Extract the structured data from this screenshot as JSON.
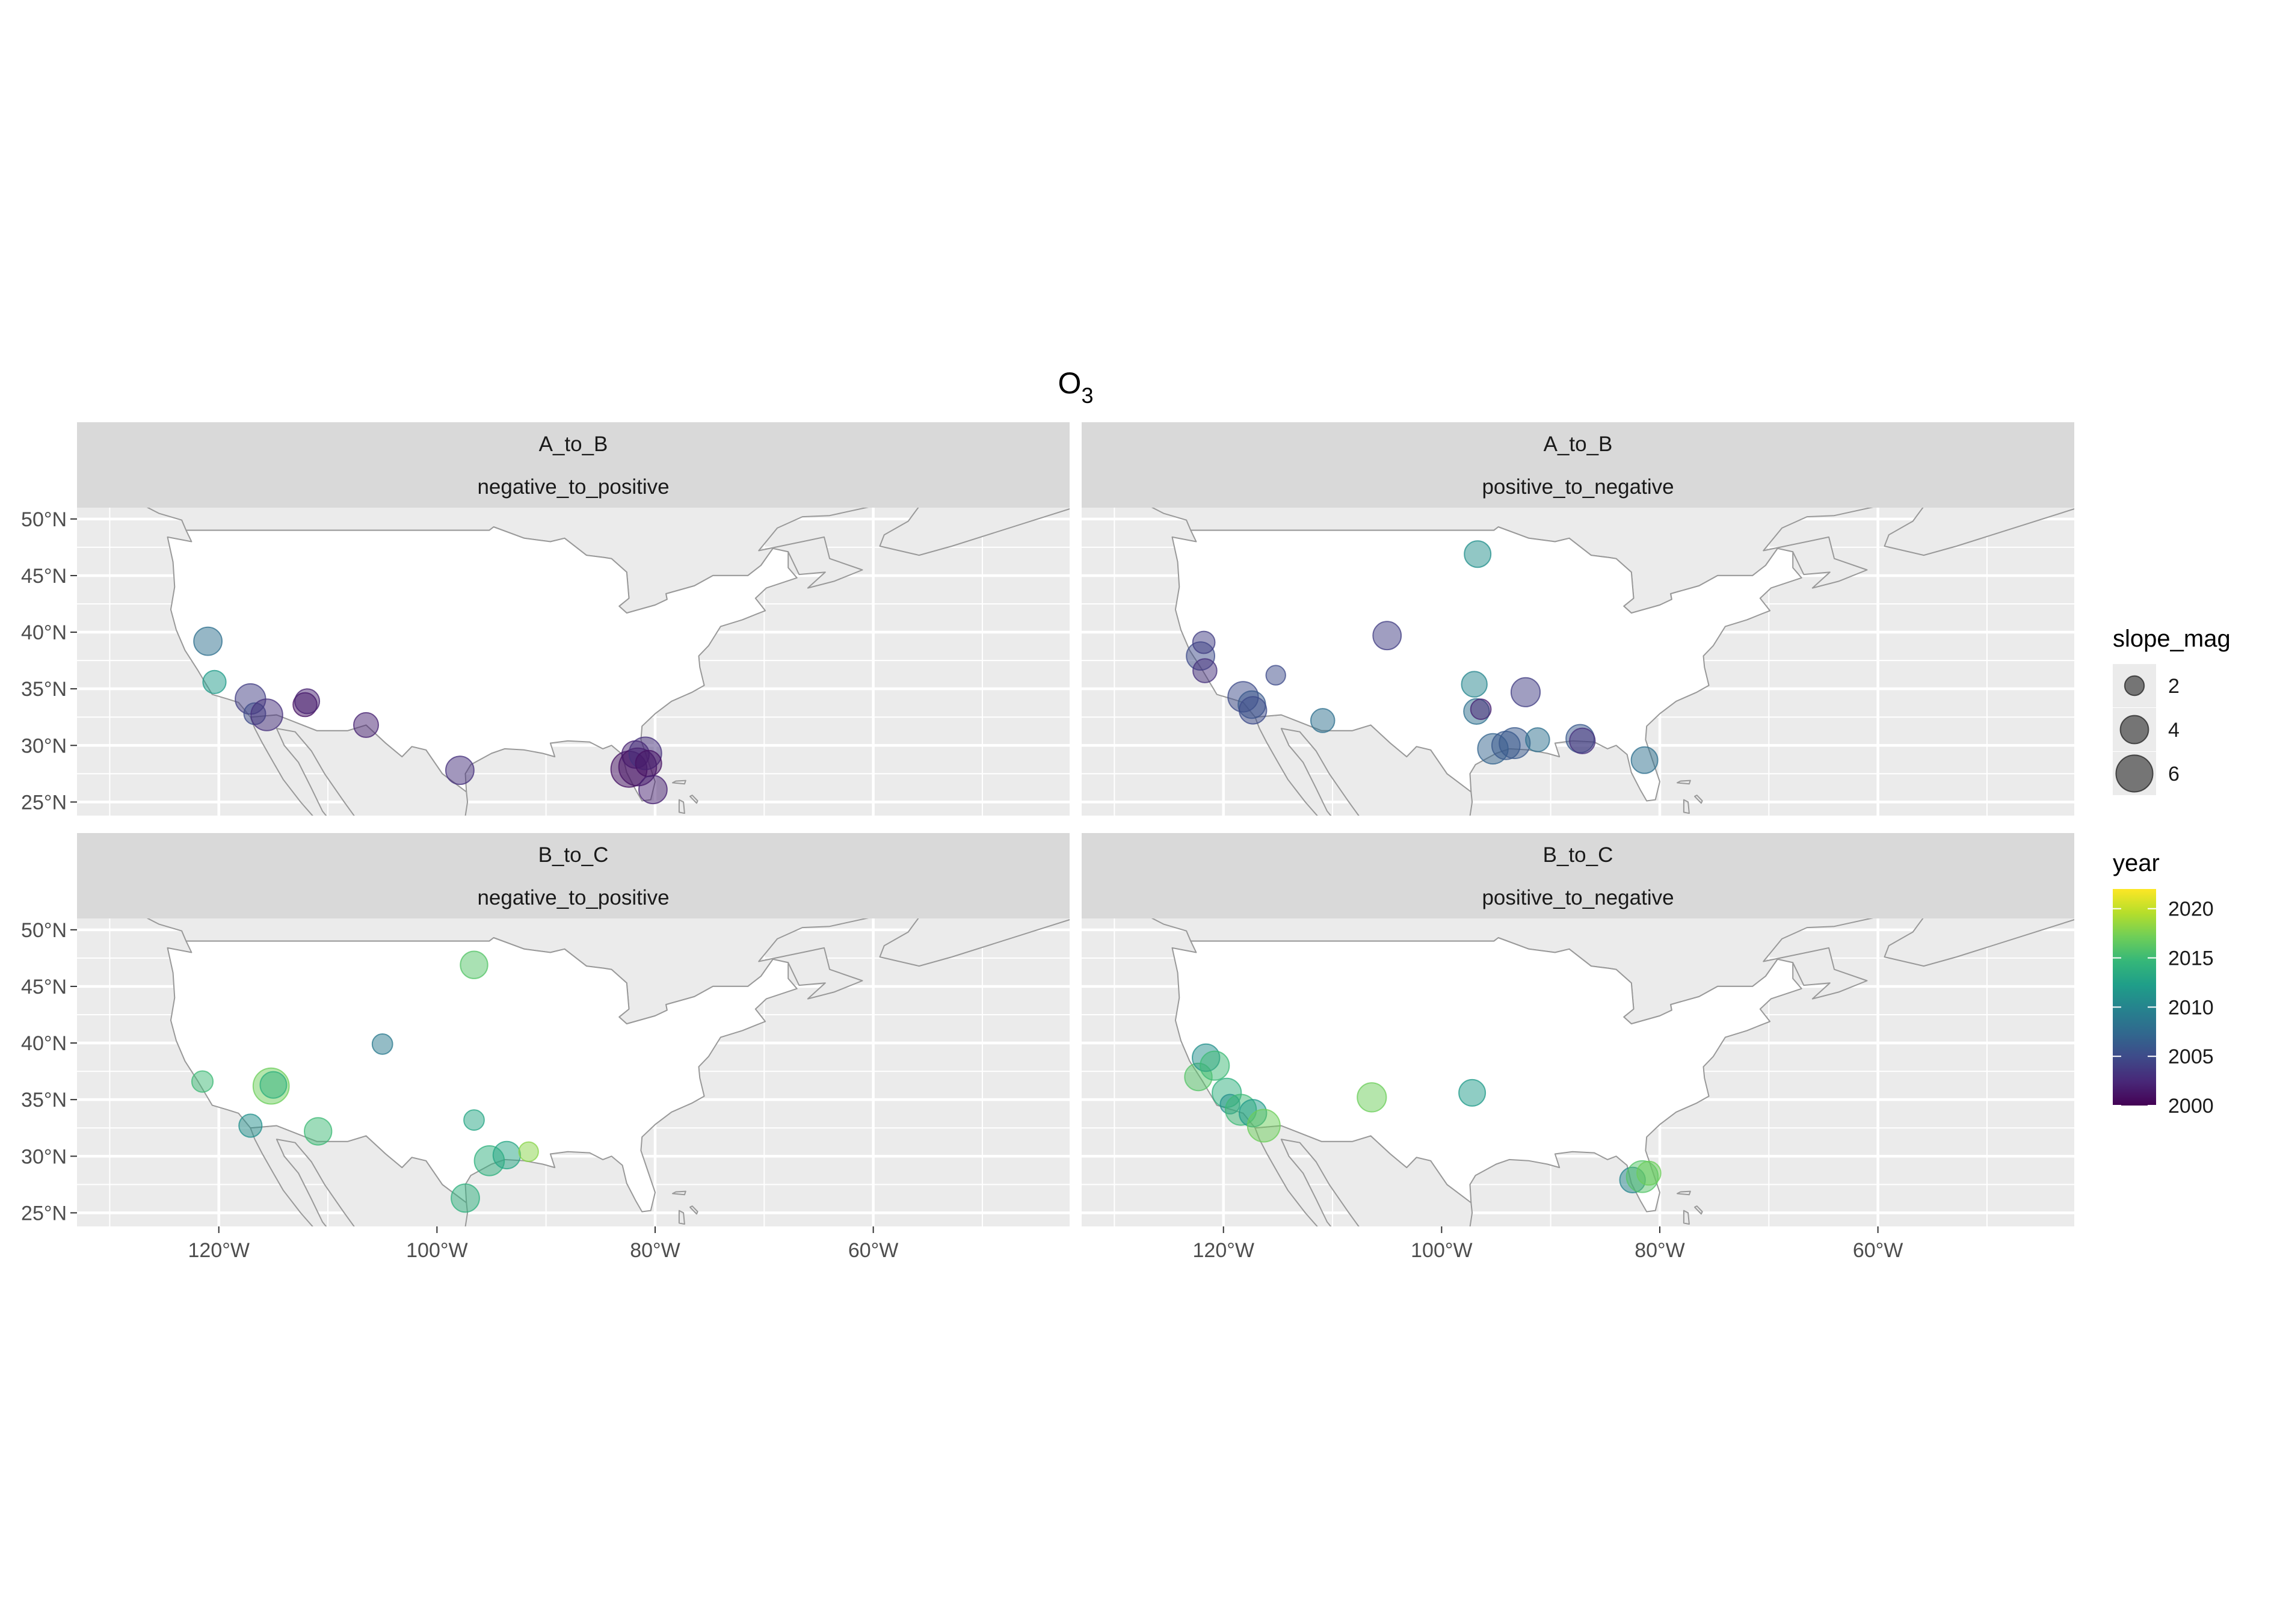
{
  "title": {
    "base": "O",
    "subscript": "3"
  },
  "x_ticks": [
    "120°W",
    "100°W",
    "80°W",
    "60°W"
  ],
  "y_ticks": [
    "50°N",
    "45°N",
    "40°N",
    "35°N",
    "30°N",
    "25°N"
  ],
  "panels": [
    {
      "strip_top": "A_to_B",
      "strip_bottom": "negative_to_positive",
      "points": [
        {
          "lon": -121.0,
          "lat": 39.2,
          "size": 4.0,
          "year": 2008
        },
        {
          "lon": -120.4,
          "lat": 35.6,
          "size": 2.8,
          "year": 2012
        },
        {
          "lon": -117.1,
          "lat": 34.1,
          "size": 4.5,
          "year": 2004
        },
        {
          "lon": -116.7,
          "lat": 32.8,
          "size": 2.5,
          "year": 2005
        },
        {
          "lon": -115.6,
          "lat": 32.7,
          "size": 4.8,
          "year": 2003
        },
        {
          "lon": -112.1,
          "lat": 33.6,
          "size": 3.0,
          "year": 2001
        },
        {
          "lon": -111.9,
          "lat": 33.9,
          "size": 3.2,
          "year": 2002
        },
        {
          "lon": -106.5,
          "lat": 31.8,
          "size": 3.2,
          "year": 2002
        },
        {
          "lon": -97.9,
          "lat": 27.8,
          "size": 4.0,
          "year": 2003
        },
        {
          "lon": -82.4,
          "lat": 27.9,
          "size": 5.8,
          "year": 2001
        },
        {
          "lon": -81.8,
          "lat": 29.2,
          "size": 3.8,
          "year": 2002
        },
        {
          "lon": -81.6,
          "lat": 28.1,
          "size": 6.2,
          "year": 2001
        },
        {
          "lon": -80.9,
          "lat": 29.3,
          "size": 5.0,
          "year": 2003
        },
        {
          "lon": -80.6,
          "lat": 28.4,
          "size": 3.5,
          "year": 2001
        },
        {
          "lon": -80.2,
          "lat": 26.1,
          "size": 4.0,
          "year": 2002
        }
      ]
    },
    {
      "strip_top": "A_to_B",
      "strip_bottom": "positive_to_negative",
      "points": [
        {
          "lon": -122.1,
          "lat": 37.9,
          "size": 4.0,
          "year": 2005
        },
        {
          "lon": -121.8,
          "lat": 39.1,
          "size": 2.6,
          "year": 2004
        },
        {
          "lon": -121.7,
          "lat": 36.6,
          "size": 3.0,
          "year": 2003
        },
        {
          "lon": -118.2,
          "lat": 34.3,
          "size": 4.5,
          "year": 2005
        },
        {
          "lon": -117.4,
          "lat": 33.6,
          "size": 3.8,
          "year": 2006
        },
        {
          "lon": -117.3,
          "lat": 33.1,
          "size": 3.8,
          "year": 2005
        },
        {
          "lon": -115.2,
          "lat": 36.2,
          "size": 2.0,
          "year": 2005
        },
        {
          "lon": -110.9,
          "lat": 32.2,
          "size": 3.0,
          "year": 2008
        },
        {
          "lon": -105.0,
          "lat": 39.7,
          "size": 4.0,
          "year": 2004
        },
        {
          "lon": -96.7,
          "lat": 46.9,
          "size": 3.6,
          "year": 2011
        },
        {
          "lon": -97.0,
          "lat": 35.4,
          "size": 3.4,
          "year": 2010
        },
        {
          "lon": -96.8,
          "lat": 33.0,
          "size": 3.4,
          "year": 2008
        },
        {
          "lon": -96.4,
          "lat": 33.2,
          "size": 2.2,
          "year": 2002
        },
        {
          "lon": -92.3,
          "lat": 34.7,
          "size": 4.2,
          "year": 2004
        },
        {
          "lon": -95.3,
          "lat": 29.7,
          "size": 4.5,
          "year": 2007
        },
        {
          "lon": -94.1,
          "lat": 30.0,
          "size": 4.0,
          "year": 2006
        },
        {
          "lon": -93.3,
          "lat": 30.2,
          "size": 4.6,
          "year": 2006
        },
        {
          "lon": -91.2,
          "lat": 30.5,
          "size": 3.0,
          "year": 2008
        },
        {
          "lon": -87.3,
          "lat": 30.6,
          "size": 4.0,
          "year": 2006
        },
        {
          "lon": -87.1,
          "lat": 30.4,
          "size": 3.4,
          "year": 2003
        },
        {
          "lon": -81.4,
          "lat": 28.7,
          "size": 3.6,
          "year": 2008
        }
      ]
    },
    {
      "strip_top": "B_to_C",
      "strip_bottom": "negative_to_positive",
      "points": [
        {
          "lon": -96.6,
          "lat": 46.9,
          "size": 3.8,
          "year": 2016
        },
        {
          "lon": -105.0,
          "lat": 39.9,
          "size": 2.2,
          "year": 2009
        },
        {
          "lon": -121.5,
          "lat": 36.6,
          "size": 2.4,
          "year": 2015
        },
        {
          "lon": -115.2,
          "lat": 36.2,
          "size": 5.8,
          "year": 2017
        },
        {
          "lon": -115.0,
          "lat": 36.3,
          "size": 3.6,
          "year": 2014
        },
        {
          "lon": -117.1,
          "lat": 32.7,
          "size": 2.8,
          "year": 2011
        },
        {
          "lon": -110.9,
          "lat": 32.2,
          "size": 3.8,
          "year": 2015
        },
        {
          "lon": -96.6,
          "lat": 33.2,
          "size": 2.2,
          "year": 2013
        },
        {
          "lon": -95.2,
          "lat": 29.6,
          "size": 4.4,
          "year": 2014
        },
        {
          "lon": -93.6,
          "lat": 30.1,
          "size": 3.8,
          "year": 2013
        },
        {
          "lon": -91.6,
          "lat": 30.4,
          "size": 2.0,
          "year": 2018
        },
        {
          "lon": -97.4,
          "lat": 26.3,
          "size": 4.0,
          "year": 2014
        }
      ]
    },
    {
      "strip_top": "B_to_C",
      "strip_bottom": "positive_to_negative",
      "points": [
        {
          "lon": -122.3,
          "lat": 37.0,
          "size": 3.8,
          "year": 2016
        },
        {
          "lon": -121.6,
          "lat": 38.7,
          "size": 3.8,
          "year": 2011
        },
        {
          "lon": -120.8,
          "lat": 38.0,
          "size": 4.2,
          "year": 2015
        },
        {
          "lon": -119.7,
          "lat": 35.6,
          "size": 4.2,
          "year": 2014
        },
        {
          "lon": -119.4,
          "lat": 34.6,
          "size": 2.0,
          "year": 2011
        },
        {
          "lon": -118.4,
          "lat": 34.1,
          "size": 4.6,
          "year": 2015
        },
        {
          "lon": -117.3,
          "lat": 33.8,
          "size": 3.8,
          "year": 2012
        },
        {
          "lon": -116.3,
          "lat": 32.7,
          "size": 5.0,
          "year": 2017
        },
        {
          "lon": -106.4,
          "lat": 35.2,
          "size": 4.2,
          "year": 2017
        },
        {
          "lon": -97.2,
          "lat": 35.6,
          "size": 3.6,
          "year": 2012
        },
        {
          "lon": -82.5,
          "lat": 27.9,
          "size": 3.4,
          "year": 2010
        },
        {
          "lon": -81.6,
          "lat": 28.2,
          "size": 4.8,
          "year": 2016
        },
        {
          "lon": -81.0,
          "lat": 28.5,
          "size": 3.0,
          "year": 2017
        }
      ]
    }
  ],
  "legend_size": {
    "title": "slope_mag",
    "entries": [
      {
        "label": "2",
        "size": 2
      },
      {
        "label": "4",
        "size": 4
      },
      {
        "label": "6",
        "size": 6
      }
    ]
  },
  "legend_color": {
    "title": "year",
    "min": 2000,
    "max": 2022,
    "ticks": [
      {
        "label": "2020",
        "value": 2020
      },
      {
        "label": "2015",
        "value": 2015
      },
      {
        "label": "2010",
        "value": 2010
      },
      {
        "label": "2005",
        "value": 2005
      },
      {
        "label": "2000",
        "value": 2000
      }
    ],
    "palette": [
      "#440154",
      "#482878",
      "#3e4a89",
      "#31688e",
      "#26828e",
      "#1f9e89",
      "#35b779",
      "#6ece58",
      "#b5de2b",
      "#fde725"
    ]
  },
  "colors": {
    "panel_bg": "#ebebeb",
    "grid": "#ffffff",
    "strip_bg": "#d9d9d9",
    "land": "#ffffff",
    "foreign_land": "#ebebeb",
    "border": "#999999",
    "text": "#1a1a1a",
    "axis_text": "#4d4d4d"
  }
}
